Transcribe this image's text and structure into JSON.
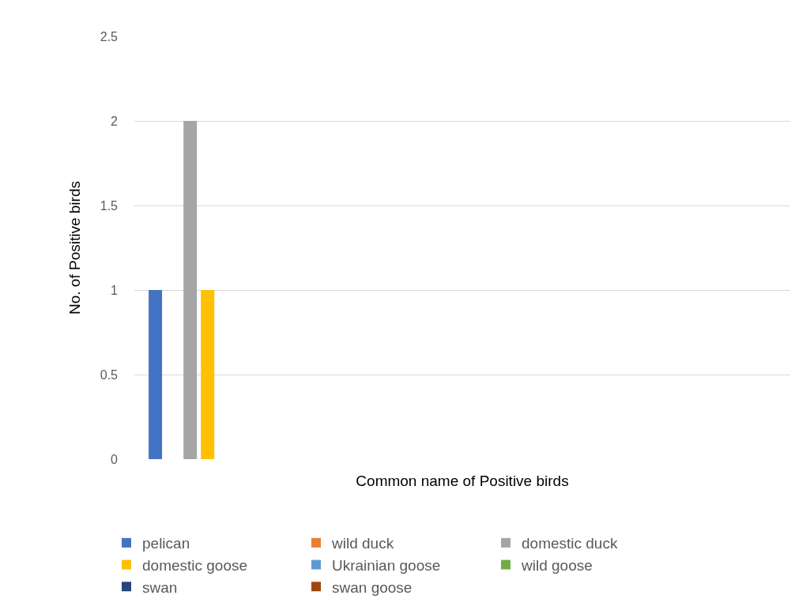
{
  "chart_data": {
    "type": "bar",
    "xlabel": "Common name of Positive birds",
    "ylabel": "No. of Positive birds",
    "categories": [
      null,
      null,
      null,
      null
    ],
    "series": [
      {
        "name": "pelican",
        "color": "#4472c4",
        "values": [
          1,
          null,
          null,
          null
        ]
      },
      {
        "name": "wild duck",
        "color": "#ed7d31",
        "values": [
          0,
          null,
          null,
          null
        ]
      },
      {
        "name": "domestic duck",
        "color": "#a5a5a5",
        "values": [
          2,
          null,
          null,
          null
        ]
      },
      {
        "name": "domestic goose",
        "color": "#ffc000",
        "values": [
          1,
          null,
          null,
          null
        ]
      },
      {
        "name": "Ukrainian goose",
        "color": "#5b9bd5",
        "values": [
          0,
          null,
          null,
          null
        ]
      },
      {
        "name": "wild goose",
        "color": "#70ad47",
        "values": [
          0,
          null,
          null,
          null
        ]
      },
      {
        "name": "swan",
        "color": "#264478",
        "values": [
          0,
          null,
          null,
          null
        ]
      },
      {
        "name": "swan goose",
        "color": "#9e480e",
        "values": [
          0,
          null,
          null,
          null
        ]
      }
    ],
    "ylim": [
      0,
      2.5
    ],
    "yticks": [
      0,
      0.5,
      1,
      1.5,
      2,
      2.5
    ],
    "grid": "y",
    "legend": "bottom",
    "tick_labels": "y"
  }
}
